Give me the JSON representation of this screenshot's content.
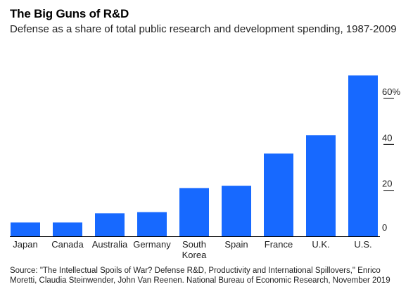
{
  "header": {
    "title": "The Big Guns of R&D",
    "subtitle": "Defense as a share of total public research and development spending, 1987-2009"
  },
  "source": "Source: \"The Intellectual Spoils of War? Defense R&D, Productivity and International Spillovers,\" Enrico Moretti, Claudia Steinwender, John Van Reenen. National Bureau of Economic Research, November 2019",
  "chart_data": {
    "type": "bar",
    "title": "The Big Guns of R&D",
    "subtitle": "Defense as a share of total public research and development spending, 1987-2009",
    "categories": [
      "Japan",
      "Canada",
      "Australia",
      "Germany",
      "South Korea",
      "Spain",
      "France",
      "U.K.",
      "U.S."
    ],
    "category_lines": [
      [
        "Japan"
      ],
      [
        "Canada"
      ],
      [
        "Australia"
      ],
      [
        "Germany"
      ],
      [
        "South",
        "Korea"
      ],
      [
        "Spain"
      ],
      [
        "France"
      ],
      [
        "U.K."
      ],
      [
        "U.S."
      ]
    ],
    "values": [
      6,
      6,
      10,
      10.5,
      21,
      22,
      36,
      44,
      70
    ],
    "ylim": [
      0,
      75
    ],
    "yticks": [
      0,
      20,
      40,
      60
    ],
    "ytick_labels": [
      "0",
      "20",
      "40",
      "60%"
    ],
    "y_axis_position": "right",
    "bar_color": "#1769ff",
    "grid": false
  }
}
